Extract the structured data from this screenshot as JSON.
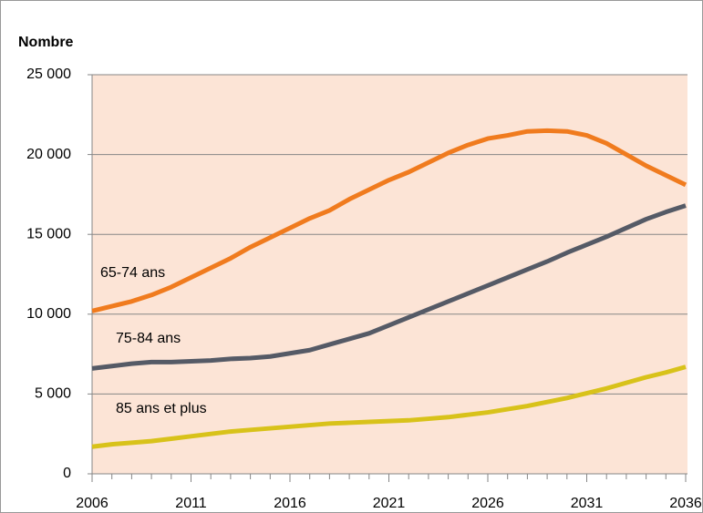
{
  "chart_data": {
    "type": "line",
    "ylabel": "Nombre",
    "x": [
      2006,
      2007,
      2008,
      2009,
      2010,
      2011,
      2012,
      2013,
      2014,
      2015,
      2016,
      2017,
      2018,
      2019,
      2020,
      2021,
      2022,
      2023,
      2024,
      2025,
      2026,
      2027,
      2028,
      2029,
      2030,
      2031,
      2032,
      2033,
      2034,
      2035,
      2036
    ],
    "series": [
      {
        "name": "65-74 ans",
        "color": "#f07b1e",
        "values": [
          10200,
          10500,
          10800,
          11200,
          11700,
          12300,
          12900,
          13500,
          14200,
          14800,
          15400,
          16000,
          16500,
          17200,
          17800,
          18400,
          18900,
          19500,
          20100,
          20600,
          21000,
          21200,
          21450,
          21500,
          21450,
          21200,
          20700,
          20000,
          19300,
          18700,
          18100
        ]
      },
      {
        "name": "75-84 ans",
        "color": "#555a66",
        "values": [
          6600,
          6750,
          6900,
          7000,
          7000,
          7050,
          7100,
          7200,
          7250,
          7350,
          7550,
          7750,
          8100,
          8450,
          8800,
          9300,
          9800,
          10300,
          10800,
          11300,
          11800,
          12300,
          12800,
          13300,
          13850,
          14350,
          14850,
          15400,
          15950,
          16400,
          16800
        ]
      },
      {
        "name": "85 ans et plus",
        "color": "#d8c21a",
        "values": [
          1700,
          1850,
          1950,
          2050,
          2200,
          2350,
          2500,
          2650,
          2750,
          2850,
          2950,
          3050,
          3150,
          3200,
          3250,
          3300,
          3350,
          3450,
          3550,
          3700,
          3850,
          4050,
          4250,
          4500,
          4750,
          5050,
          5350,
          5700,
          6050,
          6350,
          6700
        ]
      }
    ],
    "xlim": [
      2006,
      2036
    ],
    "xticks": [
      2006,
      2011,
      2016,
      2021,
      2026,
      2031,
      2036
    ],
    "ylim": [
      0,
      25000
    ],
    "yticks": [
      0,
      {
        "value": 5000,
        "label": "5 000"
      },
      {
        "value": 10000,
        "label": "10 000"
      },
      {
        "value": 15000,
        "label": "15 000"
      },
      {
        "value": 20000,
        "label": "20 000"
      },
      {
        "value": 25000,
        "label": "25 000"
      }
    ],
    "grid": true,
    "plot_background": "#fce4d6"
  }
}
